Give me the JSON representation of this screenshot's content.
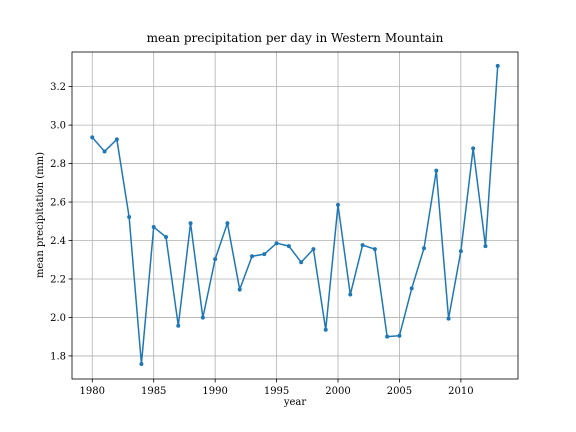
{
  "chart_data": {
    "type": "line",
    "title": "mean precipitation per day in Western Mountain",
    "xlabel": "year",
    "ylabel": "mean precipitation (mm)",
    "x": [
      1980,
      1981,
      1982,
      1983,
      1984,
      1985,
      1986,
      1987,
      1988,
      1989,
      1990,
      1991,
      1992,
      1993,
      1994,
      1995,
      1996,
      1997,
      1998,
      1999,
      2000,
      2001,
      2002,
      2003,
      2004,
      2005,
      2006,
      2007,
      2008,
      2009,
      2010,
      2011,
      2012,
      2013
    ],
    "series": [
      {
        "name": "mean precipitation",
        "color": "#1f77b4",
        "values": [
          2.936,
          2.863,
          2.926,
          2.522,
          1.758,
          2.47,
          2.418,
          1.957,
          2.49,
          1.999,
          2.303,
          2.49,
          2.145,
          2.318,
          2.329,
          2.386,
          2.371,
          2.287,
          2.355,
          1.936,
          2.585,
          2.119,
          2.376,
          2.355,
          1.9,
          1.905,
          2.151,
          2.36,
          2.763,
          1.994,
          2.345,
          2.879,
          2.371,
          3.308
        ]
      }
    ],
    "xlim": [
      1978.35,
      2014.65
    ],
    "ylim": [
      1.68,
      3.38
    ],
    "xticks": [
      1980,
      1985,
      1990,
      1995,
      2000,
      2005,
      2010
    ],
    "yticks": [
      1.8,
      {
        "value": 2.0,
        "label": "2.0"
      },
      2.2,
      2.4,
      2.6,
      2.8,
      {
        "value": 3.0,
        "label": "3.0"
      },
      3.2
    ],
    "grid": true
  }
}
